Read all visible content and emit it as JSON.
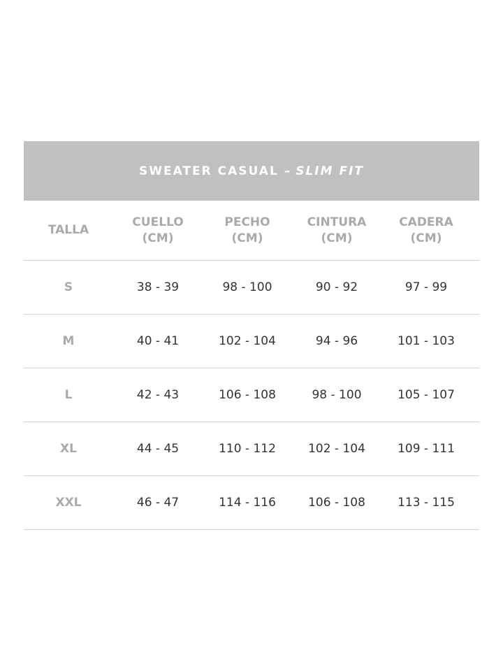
{
  "title": {
    "main": "SWEATER CASUAL –",
    "fit": "SLIM FIT"
  },
  "headers": [
    "TALLA",
    "CUELLO\n(CM)",
    "PECHO\n(CM)",
    "CINTURA\n(CM)",
    "CADERA\n(CM)"
  ],
  "rows": [
    [
      "S",
      "38 - 39",
      "98 - 100",
      "90 - 92",
      "97 - 99"
    ],
    [
      "M",
      "40 - 41",
      "102 - 104",
      "94 - 96",
      "101 - 103"
    ],
    [
      "L",
      "42 - 43",
      "106 - 108",
      "98 - 100",
      "105 - 107"
    ],
    [
      "XL",
      "44 - 45",
      "110 - 112",
      "102 - 104",
      "109 - 111"
    ],
    [
      "XXL",
      "46 - 47",
      "114 - 116",
      "106 - 108",
      "113 - 115"
    ]
  ],
  "colors": {
    "title_bg": "#c0c0c0",
    "header_text": "#aaaaaa",
    "value_text": "#333333"
  }
}
